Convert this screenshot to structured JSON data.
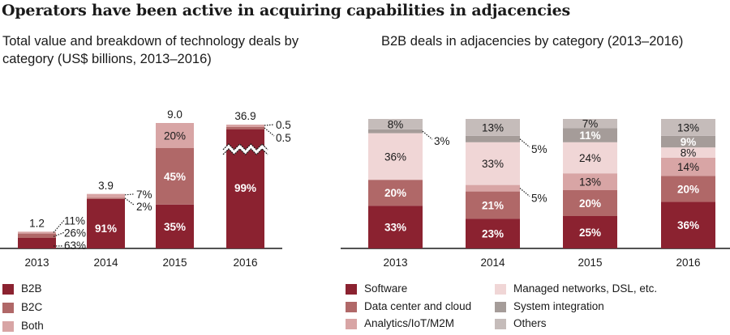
{
  "title": "Operators have been active in acquiring capabilities in adjacencies",
  "colors": {
    "b2b": "#8b2230",
    "b2c": "#b06868",
    "both": "#d8a5a5",
    "software": "#8b2230",
    "datacenter": "#b06868",
    "analytics": "#d8a5a5",
    "managed": "#f0d6d6",
    "sysint": "#a59c99",
    "others": "#c5bcba"
  },
  "chart_data": [
    {
      "type": "bar",
      "stacked": true,
      "title": "Total value and breakdown of technology deals by category (US$ billions, 2013–2016)",
      "xlabel": "",
      "ylabel": "",
      "categories": [
        "2013",
        "2014",
        "2015",
        "2016"
      ],
      "totals": [
        1.2,
        3.9,
        9.0,
        36.9
      ],
      "total_labels": [
        "1.2",
        "3.9",
        "9.0",
        "36.9"
      ],
      "axis_break": {
        "category": "2016"
      },
      "series": [
        {
          "name": "B2B",
          "values": [
            63,
            91,
            35,
            99
          ],
          "labels": [
            "63%",
            "91%",
            "35%",
            "99%"
          ]
        },
        {
          "name": "B2C",
          "values": [
            26,
            2,
            45,
            0.5
          ],
          "labels": [
            "26%",
            "2%",
            "45%",
            "0.5"
          ]
        },
        {
          "name": "Both",
          "values": [
            11,
            7,
            20,
            0.5
          ],
          "labels": [
            "11%",
            "7%",
            "20%",
            "0.5"
          ]
        }
      ],
      "legend": [
        "B2B",
        "B2C",
        "Both"
      ],
      "legend_position": "bottom-left",
      "grid": false
    },
    {
      "type": "bar",
      "stacked": true,
      "percent": true,
      "title": "B2B deals in adjacencies by category (2013–2016)",
      "xlabel": "",
      "ylabel": "",
      "categories": [
        "2013",
        "2014",
        "2015",
        "2016"
      ],
      "series": [
        {
          "name": "Software",
          "values": [
            33,
            23,
            25,
            36
          ]
        },
        {
          "name": "Data center and cloud",
          "values": [
            20,
            21,
            20,
            20
          ]
        },
        {
          "name": "Analytics/IoT/M2M",
          "values": [
            0,
            5,
            13,
            14
          ]
        },
        {
          "name": "Managed networks, DSL, etc.",
          "values": [
            36,
            33,
            24,
            8
          ]
        },
        {
          "name": "System integration",
          "values": [
            3,
            5,
            11,
            9
          ]
        },
        {
          "name": "Others",
          "values": [
            8,
            13,
            7,
            13
          ]
        }
      ],
      "legend": [
        "Software",
        "Data center and cloud",
        "Analytics/IoT/M2M",
        "Managed networks, DSL, etc.",
        "System integration",
        "Others"
      ],
      "legend_position": "bottom",
      "grid": false
    }
  ]
}
